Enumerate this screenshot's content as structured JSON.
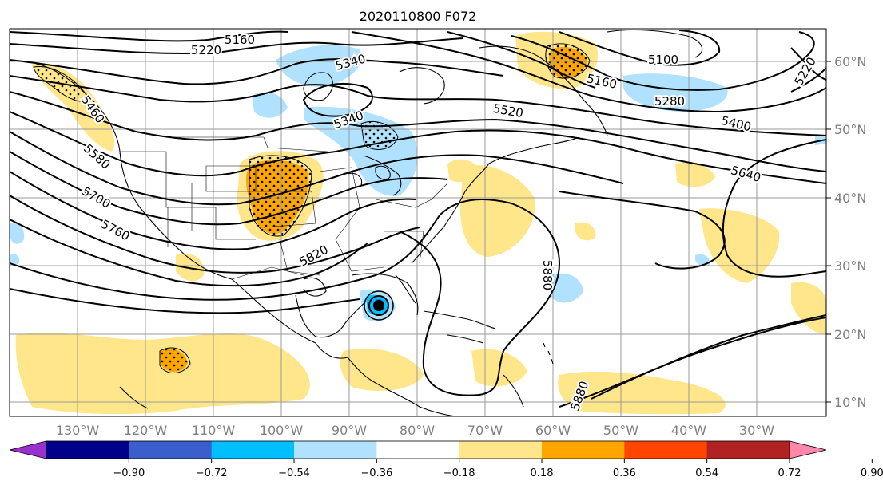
{
  "title": "2020110800 F072",
  "lat_labels": [
    "60°N",
    "50°N",
    "40°N",
    "30°N",
    "20°N",
    "10°N"
  ],
  "lon_labels": [
    "130°W",
    "120°W",
    "110°W",
    "100°W",
    "90°W",
    "80°W",
    "70°W",
    "60°W",
    "50°W",
    "40°W",
    "30°W"
  ],
  "contour_labels": {
    "c5160_top": "5160",
    "c5220_top": "5220",
    "c5340_a": "5340",
    "c5340_b": "5340",
    "c5160_green": "5160",
    "c5100": "5100",
    "c5280": "5280",
    "c5220_right": "5220",
    "c5400": "5400",
    "c5520": "5520",
    "c5640": "5640",
    "c5460": "5460",
    "c5580": "5580",
    "c5700": "5700",
    "c5760": "5760",
    "c5820": "5820",
    "c5880_a": "5880",
    "c5880_b": "5880"
  },
  "colorbar": {
    "ticks": [
      "−0.90",
      "−0.72",
      "−0.54",
      "−0.36",
      "−0.18",
      "0.18",
      "0.36",
      "0.54",
      "0.72",
      "0.90"
    ],
    "colors": [
      "#9932cc",
      "#00008b",
      "#3a5fcd",
      "#00bfff",
      "#b0e2ff",
      "#ffffff",
      "#ffe68a",
      "#ffa500",
      "#ff4500",
      "#b22222",
      "#ff88aa"
    ]
  },
  "fill_colors": {
    "pos_light": "#ffe68a",
    "pos_med": "#ffa500",
    "neg_light": "#b0e2ff",
    "neg_med": "#00bfff",
    "neg_dark": "#3a5fcd"
  }
}
